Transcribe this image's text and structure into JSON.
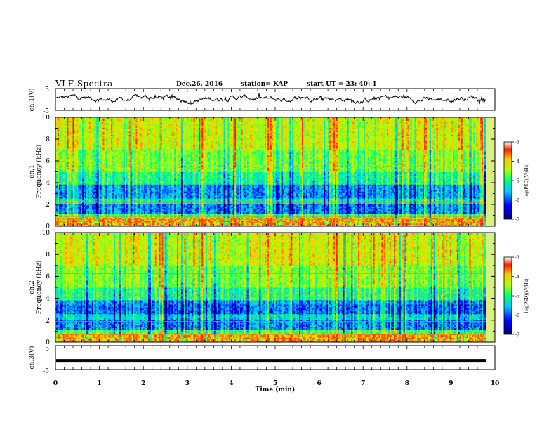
{
  "header": {
    "title": "VLF Spectra",
    "date": "Dec.26, 2016",
    "station": "station= KAP",
    "start": "start UT =  23: 40: 1"
  },
  "chart_data": [
    {
      "type": "line",
      "ylabel": "ch.1(V)",
      "ylim": [
        -5,
        5
      ],
      "yticks": [
        "5",
        "-5"
      ],
      "series": [
        {
          "values_description": "noisy waveform oscillating roughly between -1.5 and 2 V"
        }
      ]
    },
    {
      "type": "heatmap",
      "ylabel": "ch.1\nFrequency (kHz)",
      "ylim": [
        0,
        10
      ],
      "yticks": [
        "0",
        "2",
        "4",
        "6",
        "8",
        "10"
      ],
      "xlim": [
        0,
        10
      ],
      "colorbar": {
        "label": "log(PSD)(V²/Hz)",
        "range": [
          -7,
          -3
        ],
        "ticks": [
          "-3",
          "-4",
          "-5",
          "-6",
          "-7"
        ]
      }
    },
    {
      "type": "heatmap",
      "ylabel": "ch.2\nFrequency (kHz)",
      "ylim": [
        0,
        10
      ],
      "yticks": [
        "0",
        "2",
        "4",
        "6",
        "8",
        "10"
      ],
      "xlim": [
        0,
        10
      ],
      "colorbar": {
        "label": "log(PSD)(V²/Hz)",
        "range": [
          -7,
          -3
        ],
        "ticks": [
          "-3",
          "-4",
          "-5",
          "-6",
          "-7"
        ]
      }
    },
    {
      "type": "line",
      "ylabel": "ch.3(V)",
      "ylim": [
        -5,
        5
      ],
      "yticks": [
        "5",
        "-5"
      ],
      "series": [
        {
          "values": [
            -1.2,
            -1.2
          ]
        }
      ]
    }
  ],
  "xaxis": {
    "label": "Time (min)",
    "ticks": [
      "0",
      "1",
      "2",
      "3",
      "4",
      "5",
      "6",
      "7",
      "8",
      "9",
      "10"
    ]
  }
}
